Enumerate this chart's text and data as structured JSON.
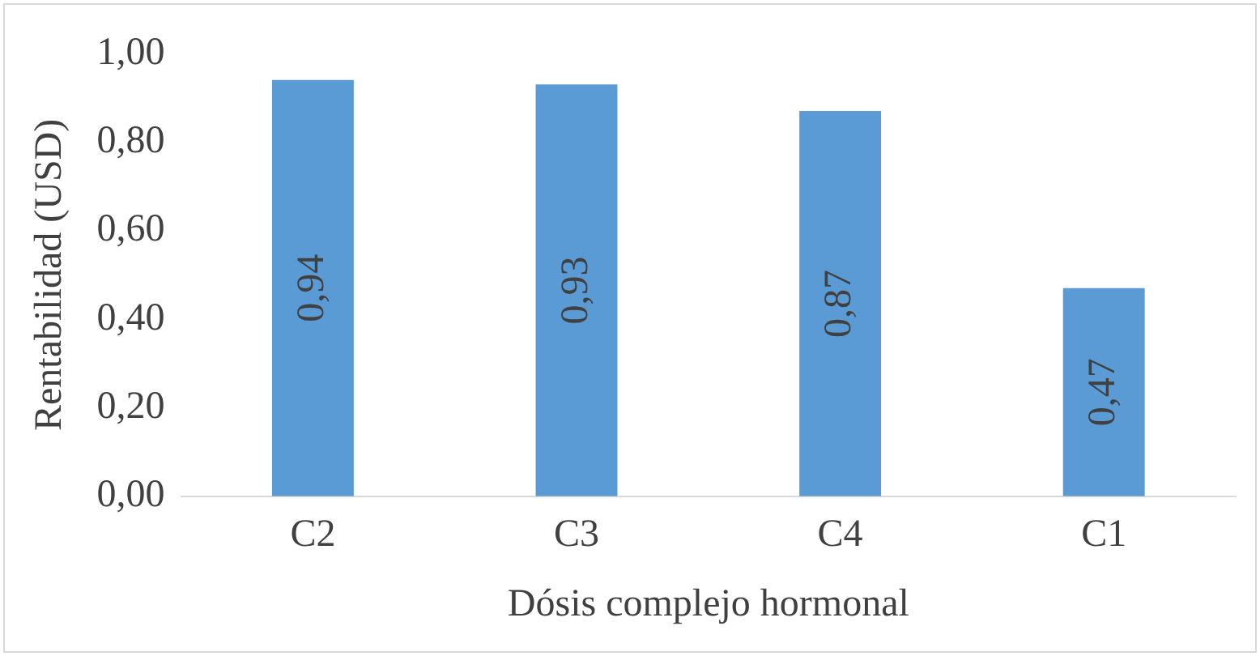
{
  "chart_data": {
    "type": "bar",
    "xlabel": "Dósis complejo hormonal",
    "ylabel": "Rentabilidad (USD)",
    "categories": [
      "C2",
      "C3",
      "C4",
      "C1"
    ],
    "values": [
      0.94,
      0.93,
      0.87,
      0.47
    ],
    "color": "#5b9bd5",
    "value_labels": [
      "0,94",
      "0,93",
      "0,87",
      "0,47"
    ],
    "ylim": [
      0,
      1
    ],
    "yticks": [
      {
        "value": 0,
        "label": "0,00"
      },
      {
        "value": 0.2,
        "label": "0,20"
      },
      {
        "value": 0.4,
        "label": "0,40"
      },
      {
        "value": 0.6,
        "label": "0,60"
      },
      {
        "value": 0.8,
        "label": "0,80"
      },
      {
        "value": 1,
        "label": "1,00"
      }
    ],
    "grid": false,
    "legend": false
  }
}
